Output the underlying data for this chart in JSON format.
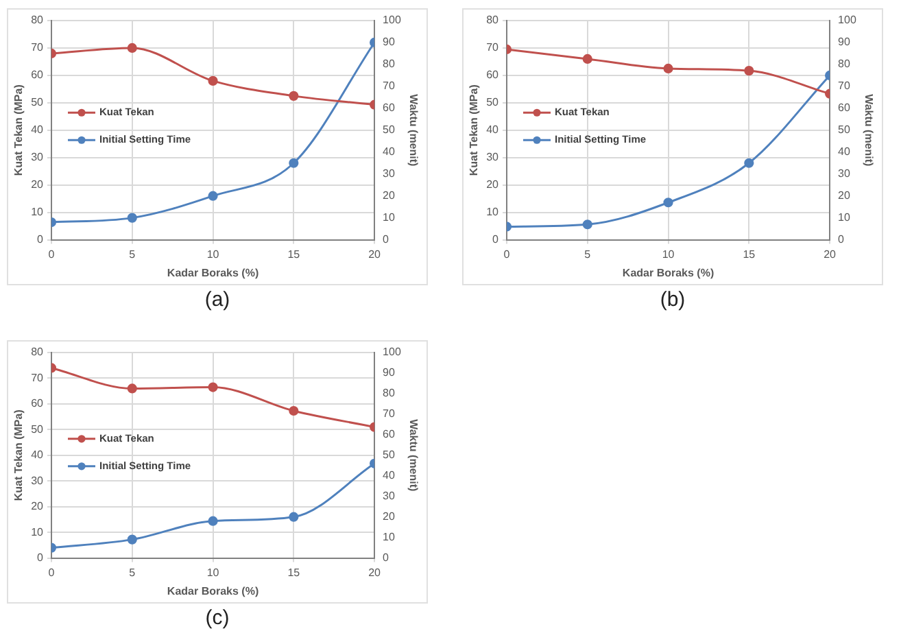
{
  "chart_data": [
    {
      "type": "line",
      "annotations": [
        "(a)"
      ],
      "xlabel": "Kadar Boraks (%)",
      "ylabel": "Kuat Tekan (MPa)",
      "y2label": "Waktu (menit)",
      "x": [
        0,
        5,
        10,
        15,
        20
      ],
      "xlim": [
        0,
        20
      ],
      "xticks": [
        0,
        5,
        10,
        15,
        20
      ],
      "ylim": [
        0,
        80
      ],
      "yticks": [
        0,
        10,
        20,
        30,
        40,
        50,
        60,
        70,
        80
      ],
      "y2lim": [
        0,
        100
      ],
      "y2ticks": [
        0,
        10,
        20,
        30,
        40,
        50,
        60,
        70,
        80,
        90,
        100
      ],
      "grid": true,
      "legend": "left",
      "marker": "circle",
      "line_style": "solid",
      "series": [
        {
          "name": "Kuat Tekan",
          "color": "#c0504d",
          "values": [
            68,
            70,
            58,
            52.5,
            49.3
          ]
        },
        {
          "name": "Initial Setting Time",
          "color": "#4f81bd",
          "axis": "y2",
          "values": [
            8,
            10,
            20,
            35,
            90
          ]
        }
      ]
    },
    {
      "type": "line",
      "annotations": [
        "(b)"
      ],
      "xlabel": "Kadar Boraks (%)",
      "ylabel": "Kuat Tekan (MPa)",
      "y2label": "Waktu (menit)",
      "x": [
        0,
        5,
        10,
        15,
        20
      ],
      "xlim": [
        0,
        20
      ],
      "xticks": [
        0,
        5,
        10,
        15,
        20
      ],
      "ylim": [
        0,
        80
      ],
      "yticks": [
        0,
        10,
        20,
        30,
        40,
        50,
        60,
        70,
        80
      ],
      "y2lim": [
        0,
        100
      ],
      "y2ticks": [
        0,
        10,
        20,
        30,
        40,
        50,
        60,
        70,
        80,
        90,
        100
      ],
      "grid": true,
      "legend": "left",
      "marker": "circle",
      "line_style": "solid",
      "series": [
        {
          "name": "Kuat Tekan",
          "color": "#c0504d",
          "values": [
            69.5,
            66,
            62.5,
            61.7,
            53.3
          ]
        },
        {
          "name": "Initial Setting Time",
          "color": "#4f81bd",
          "axis": "y2",
          "values": [
            6,
            7,
            17,
            35,
            75
          ]
        }
      ]
    },
    {
      "type": "line",
      "annotations": [
        "(c)"
      ],
      "xlabel": "Kadar Boraks (%)",
      "ylabel": "Kuat Tekan (MPa)",
      "y2label": "Waktu (menit)",
      "x": [
        0,
        5,
        10,
        15,
        20
      ],
      "xlim": [
        0,
        20
      ],
      "xticks": [
        0,
        5,
        10,
        15,
        20
      ],
      "ylim": [
        0,
        80
      ],
      "yticks": [
        0,
        10,
        20,
        30,
        40,
        50,
        60,
        70,
        80
      ],
      "y2lim": [
        0,
        100
      ],
      "y2ticks": [
        0,
        10,
        20,
        30,
        40,
        50,
        60,
        70,
        80,
        90,
        100
      ],
      "grid": true,
      "legend": "left",
      "marker": "circle",
      "line_style": "solid",
      "series": [
        {
          "name": "Kuat Tekan",
          "color": "#c0504d",
          "values": [
            74,
            66,
            66.5,
            57.3,
            51
          ]
        },
        {
          "name": "Initial Setting Time",
          "color": "#4f81bd",
          "axis": "y2",
          "values": [
            5,
            9,
            18,
            20,
            46
          ]
        }
      ]
    }
  ]
}
